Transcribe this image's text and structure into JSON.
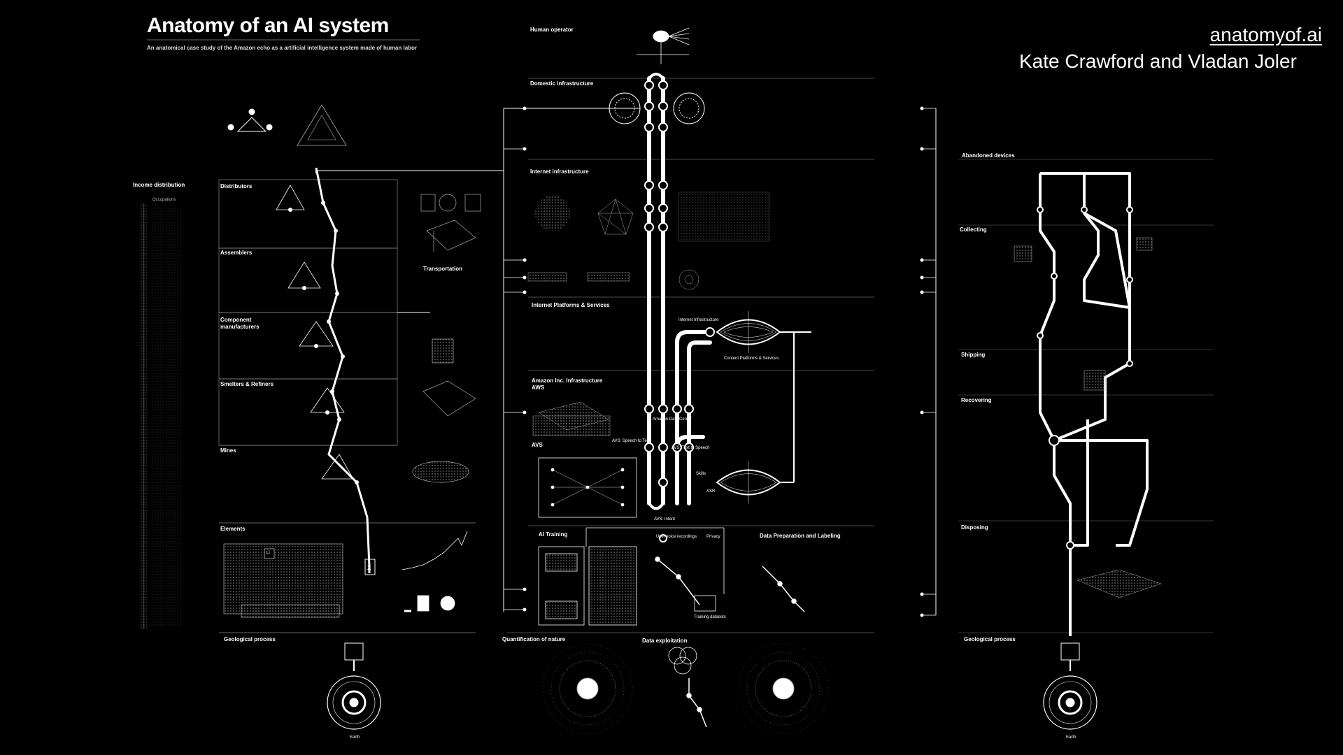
{
  "header": {
    "title": "Anatomy of an AI system",
    "subtitle": "An anatomical case study of the Amazon echo as a artificial intelligence system made of human labor"
  },
  "credit": {
    "link": "anatomyof.ai",
    "authors": "Kate Crawford and Vladan Joler"
  },
  "sections": {
    "income": "Income distribution",
    "distributors": "Distributors",
    "assemblers": "Assemblers",
    "component": "Component manufacturers",
    "smelters": "Smelters & Refiners",
    "mines": "Mines",
    "elements": "Elements",
    "transportation": "Transportation",
    "geo_left": "Geological process",
    "human_operator": "Human operator",
    "domestic": "Domestic infrastructure",
    "internet": "Internet infrastructure",
    "platforms": "Internet Platforms & Services",
    "amazon": "Amazon Inc. Infrastructure",
    "aws": "AWS",
    "avs": "AVS",
    "ai_training": "AI Training",
    "data_prep": "Data Preparation and Labeling",
    "quantification": "Quantification of nature",
    "data_exploitation": "Data exploitation",
    "abandoned": "Abandoned devices",
    "collecting": "Collecting",
    "shipping": "Shipping",
    "recovering": "Recovering",
    "disposing": "Disposing",
    "geo_right": "Geological process",
    "occupations": "Occupations",
    "speech_to_text": "AVS: Speech to Text",
    "text_to_speech": "AVS: Text to Speech",
    "skills": "Skills",
    "asr": "ASR",
    "intent": "AVS: Intent",
    "data_center": "Amazon Data Center",
    "content_platforms": "Content Platforms & Services",
    "internet_infra_small": "Internet Infrastructure",
    "training_datasets": "Training datasets",
    "user_voice": "User voice recordings",
    "privacy": "Privacy",
    "earth": "Earth",
    "x_mark": "X",
    "li_mark": "Li"
  },
  "colors": {
    "bg": "#000000",
    "fg": "#ffffff",
    "muted": "#9a9a9a"
  }
}
